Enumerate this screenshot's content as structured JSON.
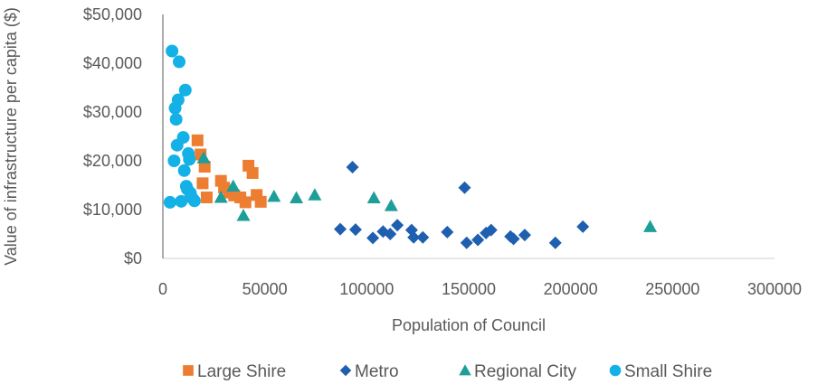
{
  "chart_data": {
    "type": "scatter",
    "title": "",
    "xlabel": "Population of Council",
    "ylabel": "Value of infrastructure per capita ($)",
    "xlim": [
      0,
      300000
    ],
    "ylim": [
      0,
      50000
    ],
    "x_ticks": [
      "0",
      "50000",
      "100000",
      "150000",
      "200000",
      "250000",
      "300000"
    ],
    "y_ticks": [
      "$0",
      "$10,000",
      "$20,000",
      "$30,000",
      "$40,000",
      "$50,000"
    ],
    "grid": false,
    "legend_position": "bottom",
    "series": [
      {
        "name": "Large Shire",
        "color": "#ED7D31",
        "marker": "square",
        "points": [
          [
            17000,
            24200
          ],
          [
            18500,
            21300
          ],
          [
            19500,
            15400
          ],
          [
            20500,
            18800
          ],
          [
            21500,
            12500
          ],
          [
            28500,
            15900
          ],
          [
            30000,
            14500
          ],
          [
            32500,
            13500
          ],
          [
            35000,
            12900
          ],
          [
            38000,
            12500
          ],
          [
            40500,
            11500
          ],
          [
            42000,
            19000
          ],
          [
            44000,
            17500
          ],
          [
            46000,
            13000
          ],
          [
            48000,
            11600
          ]
        ]
      },
      {
        "name": "Metro",
        "color": "#1F5FB0",
        "marker": "diamond",
        "points": [
          [
            87000,
            6000
          ],
          [
            93000,
            18700
          ],
          [
            94500,
            5900
          ],
          [
            103000,
            4200
          ],
          [
            108000,
            5500
          ],
          [
            111500,
            5000
          ],
          [
            115000,
            6800
          ],
          [
            122000,
            5800
          ],
          [
            123000,
            4300
          ],
          [
            127500,
            4300
          ],
          [
            139500,
            5400
          ],
          [
            149000,
            3200
          ],
          [
            148000,
            14500
          ],
          [
            154500,
            3800
          ],
          [
            158500,
            5200
          ],
          [
            161000,
            5800
          ],
          [
            170500,
            4500
          ],
          [
            172000,
            4000
          ],
          [
            177500,
            4800
          ],
          [
            192500,
            3200
          ],
          [
            206000,
            6500
          ]
        ]
      },
      {
        "name": "Regional City",
        "color": "#1E9E99",
        "marker": "triangle",
        "points": [
          [
            20000,
            20600
          ],
          [
            28500,
            12500
          ],
          [
            34500,
            14800
          ],
          [
            39500,
            8800
          ],
          [
            54500,
            12700
          ],
          [
            65500,
            12400
          ],
          [
            74500,
            13000
          ],
          [
            103500,
            12400
          ],
          [
            112000,
            10800
          ],
          [
            239000,
            6500
          ]
        ]
      },
      {
        "name": "Small Shire",
        "color": "#14B1E7",
        "marker": "circle",
        "points": [
          [
            3500,
            11500
          ],
          [
            4500,
            42500
          ],
          [
            5500,
            20000
          ],
          [
            6000,
            30800
          ],
          [
            6500,
            28500
          ],
          [
            7000,
            23200
          ],
          [
            7500,
            32500
          ],
          [
            8000,
            40300
          ],
          [
            9000,
            11700
          ],
          [
            10000,
            24800
          ],
          [
            10500,
            18000
          ],
          [
            11000,
            34500
          ],
          [
            11500,
            14800
          ],
          [
            12000,
            14200
          ],
          [
            12500,
            21500
          ],
          [
            13000,
            20300
          ],
          [
            13500,
            13400
          ],
          [
            14500,
            12300
          ],
          [
            15500,
            11800
          ]
        ]
      }
    ]
  }
}
